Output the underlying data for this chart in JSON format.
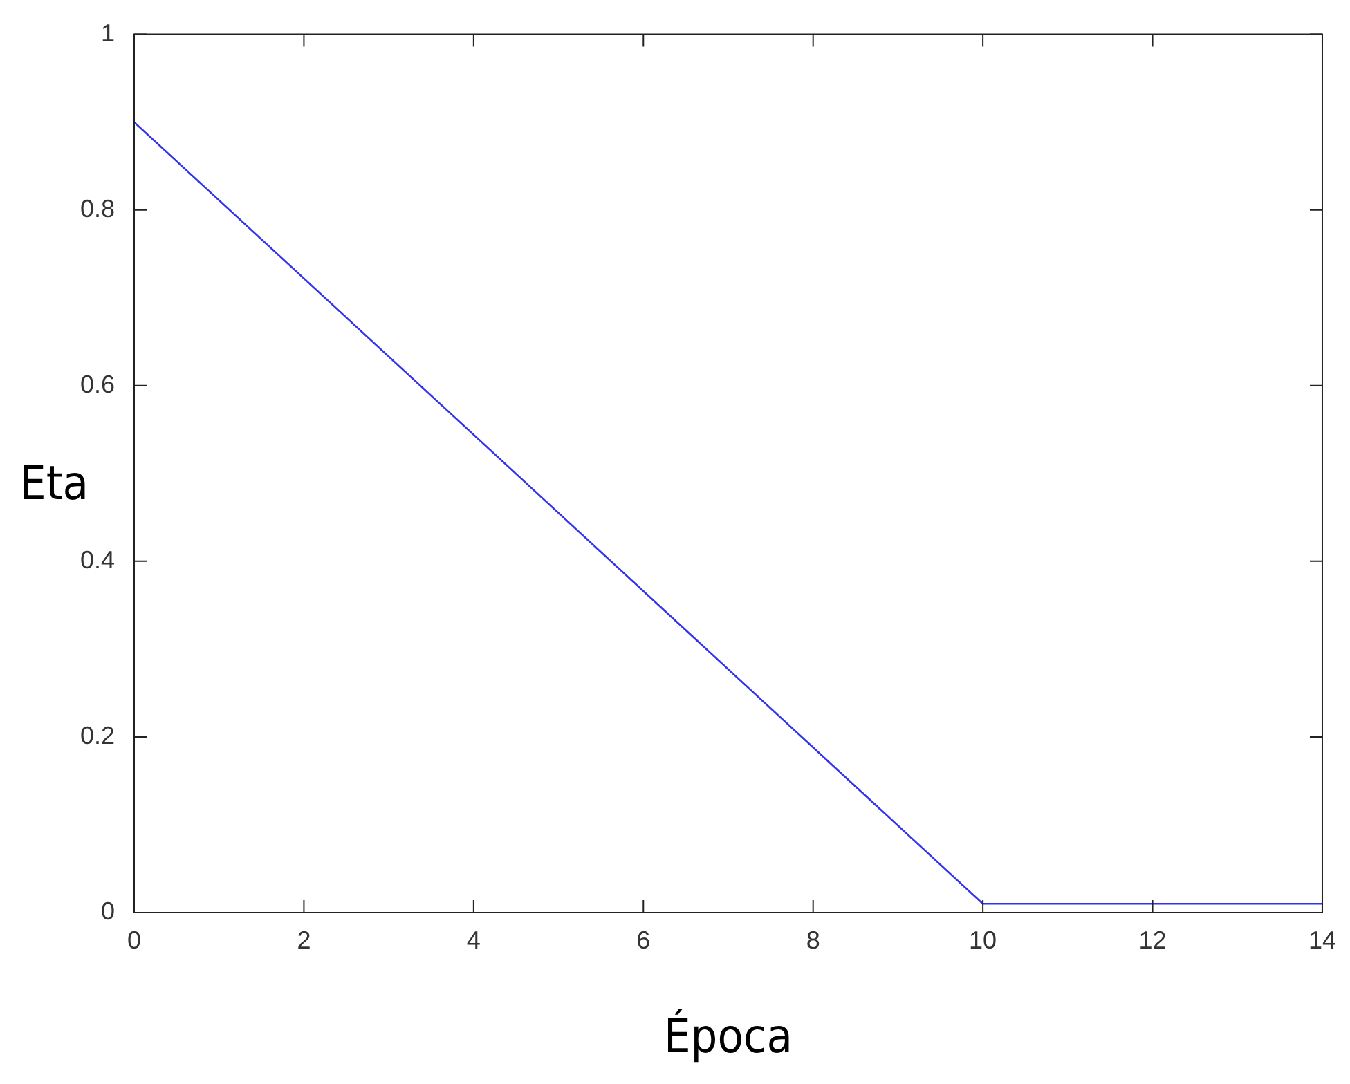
{
  "chart_data": {
    "type": "line",
    "xlabel": "Época",
    "ylabel": "Eta",
    "x": [
      0,
      10,
      14
    ],
    "series": [
      {
        "color": "#3333ee",
        "values": [
          0.9,
          0.01,
          0.01
        ]
      }
    ],
    "xlim": [
      0,
      14
    ],
    "xticks": [
      0,
      2,
      4,
      6,
      8,
      10,
      12,
      14
    ],
    "ylim": [
      0,
      1
    ],
    "yticks": [
      0,
      0.2,
      0.4,
      0.6,
      0.8,
      1
    ],
    "grid": false,
    "legend": false,
    "marker": "none",
    "line_style": "solid"
  }
}
